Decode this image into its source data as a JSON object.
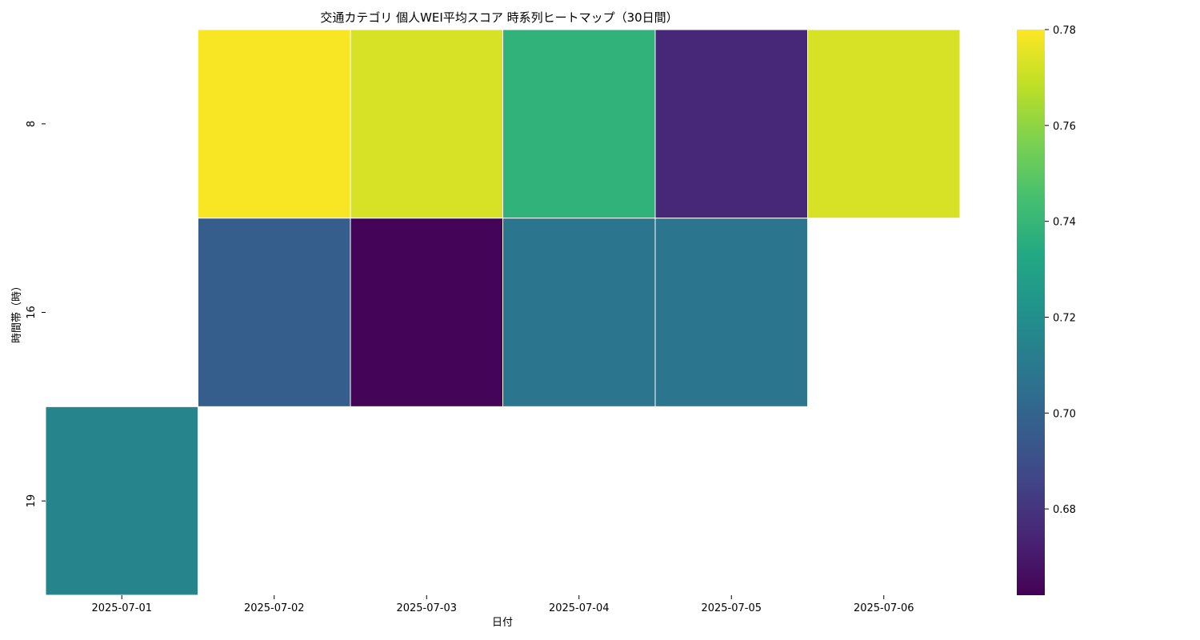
{
  "chart_data": {
    "type": "heatmap",
    "title": "交通カテゴリ 個人WEI平均スコア 時系列ヒートマップ（30日間）",
    "xlabel": "日付",
    "ylabel": "時間帯（時）",
    "x_categories": [
      "2025-07-01",
      "2025-07-02",
      "2025-07-03",
      "2025-07-04",
      "2025-07-05",
      "2025-07-06"
    ],
    "y_categories": [
      "8",
      "16",
      "19"
    ],
    "values": [
      [
        null,
        0.779,
        0.773,
        0.738,
        0.675,
        0.773
      ],
      [
        null,
        0.697,
        0.663,
        0.708,
        0.708,
        null
      ],
      [
        0.715,
        null,
        null,
        null,
        null,
        null
      ]
    ],
    "colormap": "viridis",
    "colorbar": {
      "min": 0.662,
      "max": 0.78,
      "ticks": [
        "0.68",
        "0.70",
        "0.72",
        "0.74",
        "0.76",
        "0.78"
      ]
    },
    "cell_border_color": "#ffffff",
    "grid": false
  }
}
